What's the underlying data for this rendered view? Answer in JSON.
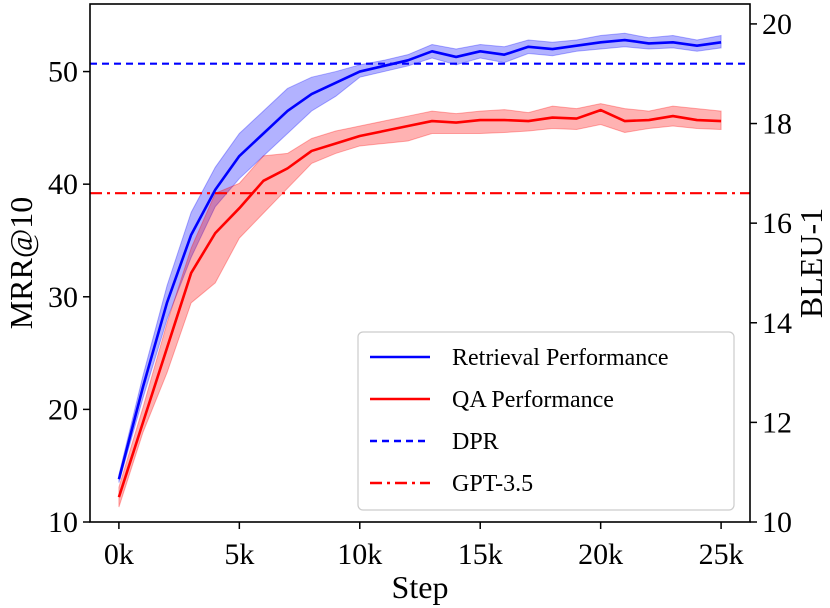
{
  "chart_data": {
    "type": "line",
    "title": "",
    "xlabel": "Step",
    "ylabel_left": "MRR@10",
    "ylabel_right": "BLEU-1",
    "xlim": [
      -1.2,
      26.2
    ],
    "ylim_left": [
      10,
      56
    ],
    "ylim_right": [
      10,
      20.4
    ],
    "x_ticks": [
      0,
      5,
      10,
      15,
      20,
      25
    ],
    "x_tick_labels": [
      "0k",
      "5k",
      "10k",
      "15k",
      "20k",
      "25k"
    ],
    "y_ticks_left": [
      10,
      20,
      30,
      40,
      50
    ],
    "y_tick_labels_left": [
      "10",
      "20",
      "30",
      "40",
      "50"
    ],
    "y_ticks_right": [
      10,
      12,
      14,
      16,
      18,
      20
    ],
    "y_tick_labels_right": [
      "10",
      "12",
      "14",
      "16",
      "18",
      "20"
    ],
    "x": [
      0,
      1,
      2,
      3,
      4,
      5,
      6,
      7,
      8,
      9,
      10,
      11,
      12,
      13,
      14,
      15,
      16,
      17,
      18,
      19,
      20,
      21,
      22,
      23,
      24,
      25
    ],
    "series": [
      {
        "name": "Retrieval Performance",
        "axis": "left",
        "color": "#0000ff",
        "style": "solid",
        "values": [
          13.8,
          22,
          29.5,
          35.5,
          39.5,
          42.5,
          44.5,
          46.5,
          48,
          49,
          50,
          50.5,
          51,
          51.8,
          51.3,
          51.8,
          51.5,
          52.2,
          52,
          52.3,
          52.6,
          52.8,
          52.5,
          52.6,
          52.3,
          52.6
        ],
        "band_lower": [
          13.5,
          21,
          28,
          33.5,
          38,
          40.5,
          42.5,
          44.5,
          46.5,
          47.8,
          49.5,
          50,
          50.5,
          51.2,
          50.6,
          51.2,
          50.8,
          51.6,
          51.4,
          51.8,
          52,
          52.2,
          52,
          52.1,
          51.8,
          52.1
        ],
        "band_upper": [
          14.2,
          23,
          31,
          37.5,
          41.5,
          44.5,
          46.5,
          48.5,
          49.5,
          50,
          50.6,
          51,
          51.5,
          52.4,
          52,
          52.4,
          52.2,
          52.8,
          52.6,
          52.8,
          53.2,
          53.4,
          53,
          53.2,
          52.8,
          53.2
        ]
      },
      {
        "name": "QA Performance",
        "axis": "right",
        "color": "#ff0000",
        "style": "solid",
        "values": [
          10.5,
          12,
          13.5,
          15,
          15.8,
          16.3,
          16.85,
          17.1,
          17.45,
          17.6,
          17.75,
          17.85,
          17.95,
          18.05,
          18.02,
          18.07,
          18.07,
          18.05,
          18.12,
          18.1,
          18.27,
          18.05,
          18.07,
          18.15,
          18.07,
          18.05
        ],
        "band_lower": [
          10.3,
          11.8,
          13,
          14.4,
          14.8,
          15.7,
          16.2,
          16.7,
          17.2,
          17.4,
          17.55,
          17.6,
          17.65,
          17.8,
          17.8,
          17.8,
          17.82,
          17.85,
          17.9,
          17.88,
          17.98,
          17.82,
          17.9,
          17.95,
          17.9,
          17.88
        ],
        "band_upper": [
          10.7,
          12.3,
          14,
          15.5,
          16.6,
          16.8,
          17.35,
          17.4,
          17.7,
          17.85,
          17.95,
          18.05,
          18.15,
          18.25,
          18.2,
          18.25,
          18.28,
          18.22,
          18.35,
          18.3,
          18.4,
          18.3,
          18.25,
          18.35,
          18.3,
          18.25
        ]
      }
    ],
    "reference_lines": [
      {
        "name": "DPR",
        "axis": "left",
        "value": 50.7,
        "color": "#0000ff",
        "style": "dashed"
      },
      {
        "name": "GPT-3.5",
        "axis": "left",
        "value": 39.2,
        "color": "#ff0000",
        "style": "dashdot"
      }
    ],
    "legend": {
      "placement": "lower-right",
      "entries": [
        {
          "label": "Retrieval Performance",
          "color": "#0000ff",
          "style": "solid"
        },
        {
          "label": "QA Performance",
          "color": "#ff0000",
          "style": "solid"
        },
        {
          "label": "DPR",
          "color": "#0000ff",
          "style": "dashed"
        },
        {
          "label": "GPT-3.5",
          "color": "#ff0000",
          "style": "dashdot"
        }
      ]
    },
    "grid": false
  }
}
